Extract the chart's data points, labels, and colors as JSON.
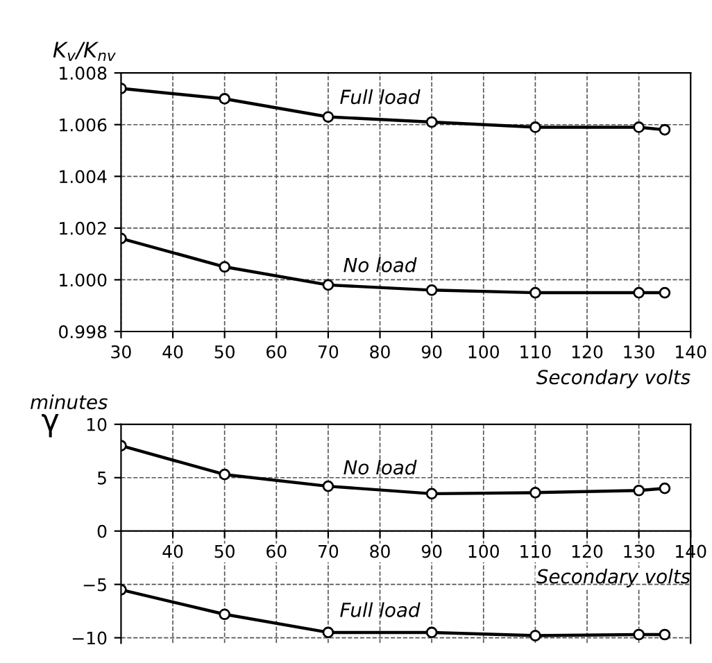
{
  "chart_data": [
    {
      "type": "line",
      "ylabel": "K$_{v}$/K$_{nv}$",
      "xlabel": "Secondary volts",
      "x": [
        30,
        50,
        70,
        90,
        110,
        130,
        135
      ],
      "series": [
        {
          "name": "Full load",
          "color": "#000000",
          "values": [
            1.0074,
            1.007,
            1.0063,
            1.0061,
            1.0059,
            1.0059,
            1.0058
          ]
        },
        {
          "name": "No load",
          "color": "#000000",
          "values": [
            1.0016,
            1.0005,
            0.9998,
            0.9996,
            0.9995,
            0.9995,
            0.9995
          ]
        }
      ],
      "xlim": [
        30,
        140
      ],
      "xticks": [
        30,
        40,
        50,
        60,
        70,
        80,
        90,
        100,
        110,
        120,
        130,
        140
      ],
      "ylim": [
        0.998,
        1.008
      ],
      "yticks": [
        0.998,
        {
          "value": 1.0,
          "label": "1.000"
        },
        1.002,
        1.004,
        1.006,
        1.008
      ],
      "grid": true,
      "marker": "circle",
      "line_style": "solid",
      "legend": false
    },
    {
      "type": "line",
      "ylabel": "γ",
      "xlabel": "Secondary volts",
      "x": [
        30,
        50,
        70,
        90,
        110,
        130,
        135
      ],
      "series": [
        {
          "name": "No load",
          "color": "#000000",
          "values": [
            8,
            5.3,
            4.2,
            3.5,
            3.6,
            3.8,
            4.0
          ]
        },
        {
          "name": "Full load",
          "color": "#000000",
          "values": [
            -5.5,
            -7.8,
            -9.5,
            -9.5,
            -9.8,
            -9.7,
            -9.7
          ]
        }
      ],
      "annotations": [
        "minutes"
      ],
      "xlim": [
        30,
        140
      ],
      "xticks": [
        40,
        50,
        60,
        70,
        80,
        90,
        100,
        110,
        120,
        130,
        140
      ],
      "ylim": [
        -10.5,
        10
      ],
      "yticks": [
        {
          "value": -10,
          "label": "−10"
        },
        {
          "value": -5,
          "label": "−5"
        },
        0,
        5,
        10
      ],
      "grid": true,
      "marker": "circle",
      "line_style": "solid",
      "legend": false
    }
  ]
}
